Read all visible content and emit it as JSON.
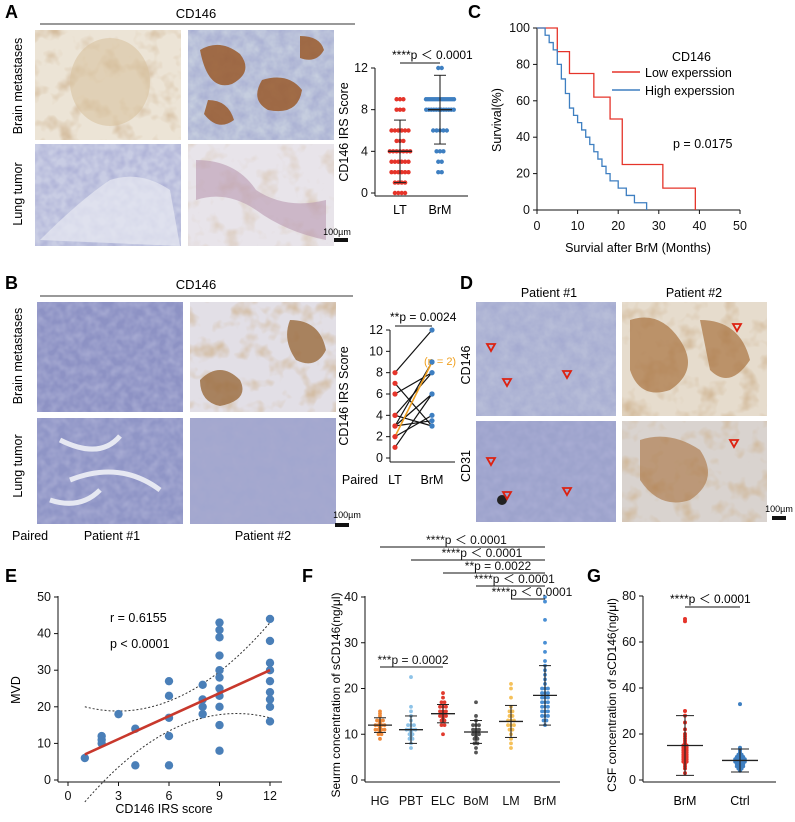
{
  "panels": {
    "A": {
      "letter": "A",
      "header": "CD146",
      "row_labels": [
        "Brain metastases",
        "Lung tumor"
      ],
      "scale_bar": "100µm"
    },
    "B": {
      "letter": "B",
      "header": "CD146",
      "row_labels": [
        "Brain metastases",
        "Lung tumor"
      ],
      "bottom_left": "Paired",
      "patients": [
        "Patient #1",
        "Patient #2"
      ],
      "scale_bar": "100µm"
    },
    "C": {
      "letter": "C"
    },
    "D": {
      "letter": "D",
      "patients": [
        "Patient #1",
        "Patient #2"
      ],
      "row_labels": [
        "CD146",
        "CD31"
      ],
      "scale_bar": "100µm"
    },
    "E": {
      "letter": "E"
    },
    "F": {
      "letter": "F"
    },
    "G": {
      "letter": "G"
    }
  },
  "colors": {
    "red": "#e5342a",
    "blue": "#3e7fc1",
    "orange": "#f0a020",
    "dark": "#444444",
    "hg": "#f08a3a",
    "pbt": "#8ec3e8",
    "elc": "#e03a2e",
    "bom": "#555555",
    "lm": "#f5c15a",
    "brm": "#4a8fd4"
  },
  "chart_data": [
    {
      "id": "A",
      "type": "scatter",
      "ylabel": "CD146 IRS Score",
      "categories": [
        "LT",
        "BrM"
      ],
      "yticks": [
        0,
        4,
        8,
        12
      ],
      "ylim": [
        0,
        12
      ],
      "significance": "****p ＜ 0.0001",
      "series": [
        {
          "name": "LT",
          "mean": 4.0,
          "sd": 3.0,
          "values": [
            9,
            9,
            9,
            8,
            8,
            8,
            6,
            6,
            6,
            6,
            6,
            6,
            5,
            5,
            5,
            4,
            4,
            4,
            4,
            4,
            4,
            4,
            3,
            3,
            3,
            3,
            3,
            3,
            2,
            2,
            2,
            2,
            2,
            2,
            1,
            1,
            1,
            1,
            0,
            0,
            0,
            0
          ]
        },
        {
          "name": "BrM",
          "mean": 8.0,
          "sd": 3.3,
          "values": [
            12,
            12,
            9,
            9,
            9,
            9,
            9,
            9,
            9,
            9,
            9,
            9,
            9,
            9,
            9,
            9,
            9,
            8,
            8,
            8,
            8,
            8,
            8,
            8,
            8,
            8,
            8,
            8,
            8,
            6,
            6,
            6,
            6,
            6,
            4,
            4,
            4,
            3,
            3,
            2,
            2
          ]
        }
      ]
    },
    {
      "id": "B",
      "type": "line",
      "ylabel": "CD146 IRS Score",
      "categories": [
        "LT",
        "BrM"
      ],
      "xprefix": "Paired",
      "yticks": [
        0,
        2,
        4,
        6,
        8,
        10,
        12
      ],
      "ylim": [
        0,
        12
      ],
      "significance": "**p = 0.0024",
      "annotation": "(n = 2)",
      "pairs": [
        [
          1,
          6
        ],
        [
          2,
          4
        ],
        [
          3,
          9
        ],
        [
          3,
          6
        ],
        [
          4,
          8
        ],
        [
          4,
          3
        ],
        [
          6,
          8
        ],
        [
          8,
          12
        ],
        [
          3,
          3.5
        ],
        [
          7,
          3
        ]
      ],
      "highlight_pair": [
        2,
        9
      ]
    },
    {
      "id": "C",
      "type": "line",
      "xlabel": "Survial after BrM (Months)",
      "ylabel": "Survival(%)",
      "xticks": [
        0,
        10,
        20,
        30,
        40,
        50
      ],
      "yticks": [
        0,
        20,
        40,
        60,
        80,
        100
      ],
      "xlim": [
        0,
        50
      ],
      "ylim": [
        0,
        100
      ],
      "legend_title": "CD146",
      "p_value": "p = 0.0175",
      "series": [
        {
          "name": "Low experssion",
          "x": [
            0,
            5,
            5,
            8,
            8,
            12,
            12,
            14,
            14,
            18,
            18,
            21,
            21,
            31,
            31,
            39,
            39
          ],
          "y": [
            100,
            100,
            87,
            87,
            75,
            75,
            75,
            75,
            62,
            62,
            50,
            50,
            25,
            25,
            12,
            12,
            0
          ]
        },
        {
          "name": "High experssion",
          "x": [
            0,
            2,
            2,
            3,
            3,
            4,
            4,
            5,
            5,
            6,
            6,
            7,
            7,
            8,
            8,
            9,
            9,
            10,
            10,
            11,
            11,
            12,
            12,
            13,
            13,
            14,
            14,
            15,
            15,
            16,
            16,
            17,
            17,
            18,
            18,
            20,
            20,
            22,
            22,
            24,
            24,
            27,
            27
          ],
          "y": [
            100,
            100,
            96,
            96,
            92,
            92,
            88,
            88,
            80,
            80,
            72,
            72,
            64,
            64,
            56,
            56,
            52,
            52,
            48,
            48,
            44,
            44,
            40,
            40,
            36,
            36,
            32,
            32,
            28,
            28,
            24,
            24,
            20,
            20,
            16,
            16,
            12,
            12,
            8,
            8,
            4,
            4,
            0
          ]
        }
      ]
    },
    {
      "id": "E",
      "type": "scatter",
      "xlabel": "CD146 IRS score",
      "ylabel": "MVD",
      "xticks": [
        0,
        3,
        6,
        9,
        12
      ],
      "yticks": [
        0,
        10,
        20,
        30,
        40,
        50
      ],
      "xlim": [
        0,
        12
      ],
      "ylim": [
        0,
        50
      ],
      "r_text": "r = 0.6155",
      "p_text": "p < 0.0001",
      "points": [
        [
          1,
          6
        ],
        [
          2,
          10
        ],
        [
          2,
          11
        ],
        [
          2,
          12
        ],
        [
          3,
          18
        ],
        [
          4,
          4
        ],
        [
          4,
          14
        ],
        [
          6,
          4
        ],
        [
          6,
          12
        ],
        [
          6,
          17
        ],
        [
          6,
          23
        ],
        [
          6,
          27
        ],
        [
          8,
          18
        ],
        [
          8,
          20
        ],
        [
          8,
          22
        ],
        [
          8,
          26
        ],
        [
          9,
          8
        ],
        [
          9,
          15
        ],
        [
          9,
          20
        ],
        [
          9,
          23
        ],
        [
          9,
          25
        ],
        [
          9,
          28
        ],
        [
          9,
          30
        ],
        [
          9,
          34
        ],
        [
          9,
          39
        ],
        [
          9,
          41
        ],
        [
          9,
          43
        ],
        [
          12,
          16
        ],
        [
          12,
          20
        ],
        [
          12,
          22
        ],
        [
          12,
          24
        ],
        [
          12,
          27
        ],
        [
          12,
          30
        ],
        [
          12,
          32
        ],
        [
          12,
          38
        ],
        [
          12,
          44
        ]
      ],
      "fit": [
        [
          1,
          7
        ],
        [
          12,
          30
        ]
      ]
    },
    {
      "id": "F",
      "type": "scatter",
      "ylabel": "Seurm concentration of sCD146(ng/μl)",
      "categories": [
        "HG",
        "PBT",
        "ELC",
        "BoM",
        "LM",
        "BrM"
      ],
      "yticks": [
        0,
        10,
        20,
        30,
        40
      ],
      "ylim": [
        0,
        40
      ],
      "significance": [
        "****p ＜ 0.0001",
        "****p ＜ 0.0001",
        "**p = 0.0022",
        "****p ＜ 0.0001",
        "****p ＜ 0.0001",
        "***p = 0.0002"
      ],
      "series": [
        {
          "name": "HG",
          "mean": 12.0,
          "sd": 1.6,
          "values": [
            9,
            10,
            10.5,
            11,
            11,
            11.5,
            12,
            12,
            12.5,
            13,
            13,
            14,
            14.5,
            15,
            12,
            11,
            13,
            10,
            12,
            11
          ]
        },
        {
          "name": "PBT",
          "mean": 11.0,
          "sd": 3.0,
          "values": [
            7,
            8,
            9,
            9.5,
            10,
            10.5,
            11,
            11,
            12,
            12,
            13,
            14,
            15,
            16,
            10,
            12,
            11,
            9,
            22.5,
            11
          ]
        },
        {
          "name": "ELC",
          "mean": 14.5,
          "sd": 2.0,
          "values": [
            10,
            12,
            13,
            13.5,
            14,
            14,
            14.5,
            15,
            15,
            16,
            16,
            17,
            18,
            19,
            14,
            13,
            15,
            16,
            17,
            12
          ]
        },
        {
          "name": "BoM",
          "mean": 10.5,
          "sd": 2.5,
          "values": [
            6,
            7,
            8,
            9,
            9.5,
            10,
            10,
            10.5,
            11,
            11,
            12,
            12,
            13,
            14,
            17,
            10,
            9,
            11,
            12,
            8
          ]
        },
        {
          "name": "LM",
          "mean": 12.8,
          "sd": 3.5,
          "values": [
            7,
            8,
            9,
            10,
            11,
            12,
            12,
            13,
            13,
            14,
            14,
            15,
            15,
            16,
            18,
            20,
            21,
            12,
            11,
            13
          ]
        },
        {
          "name": "BrM",
          "mean": 18.5,
          "sd": 6.5,
          "values": [
            12,
            13,
            14,
            14,
            15,
            15,
            16,
            16,
            17,
            17,
            18,
            18,
            19,
            19,
            20,
            20,
            21,
            22,
            23,
            24,
            25,
            26,
            28,
            30,
            35,
            39,
            40,
            16,
            17,
            18,
            15,
            14,
            13,
            19,
            20
          ]
        }
      ]
    },
    {
      "id": "G",
      "type": "scatter",
      "ylabel": "CSF concentration of sCD146(ng/μl)",
      "categories": [
        "BrM",
        "Ctrl"
      ],
      "yticks": [
        0,
        20,
        40,
        60,
        80
      ],
      "ylim": [
        0,
        80
      ],
      "significance": "****p ＜ 0.0001",
      "series": [
        {
          "name": "BrM",
          "mean": 15.0,
          "sd": 13.0,
          "values": [
            3,
            5,
            6,
            8,
            9,
            10,
            10,
            11,
            12,
            12,
            13,
            14,
            14,
            15,
            15,
            16,
            17,
            18,
            19,
            20,
            22,
            25,
            28,
            30,
            69,
            70,
            7,
            9,
            11,
            13,
            8
          ]
        },
        {
          "name": "Ctrl",
          "mean": 8.5,
          "sd": 5.0,
          "values": [
            4,
            5,
            5,
            6,
            6,
            7,
            7,
            8,
            8,
            8,
            9,
            9,
            9,
            10,
            10,
            10,
            11,
            11,
            12,
            13,
            14,
            33,
            6,
            7,
            8,
            9
          ]
        }
      ]
    }
  ]
}
